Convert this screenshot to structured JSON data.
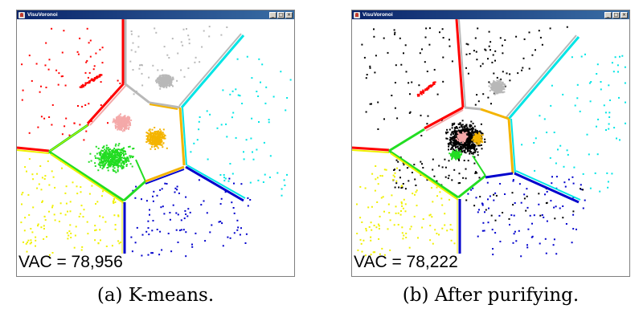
{
  "windows": [
    {
      "title": "VisuVoronoi",
      "vac_text": "VAC = 78,956",
      "caption": "(a) K-means."
    },
    {
      "title": "VisuVoronoi",
      "vac_text": "VAC = 78,222",
      "caption": "(b) After purifying."
    }
  ],
  "window_controls": {
    "minimize": "_",
    "maximize": "□",
    "close": "×"
  },
  "colors": {
    "red": "#ff0000",
    "gray": "#b8b8b8",
    "cyan": "#00e5e5",
    "pink": "#f4a9a9",
    "orange": "#f4b400",
    "green": "#22dd22",
    "yellow": "#f0f000",
    "blue": "#0000cc",
    "black": "#000000"
  }
}
